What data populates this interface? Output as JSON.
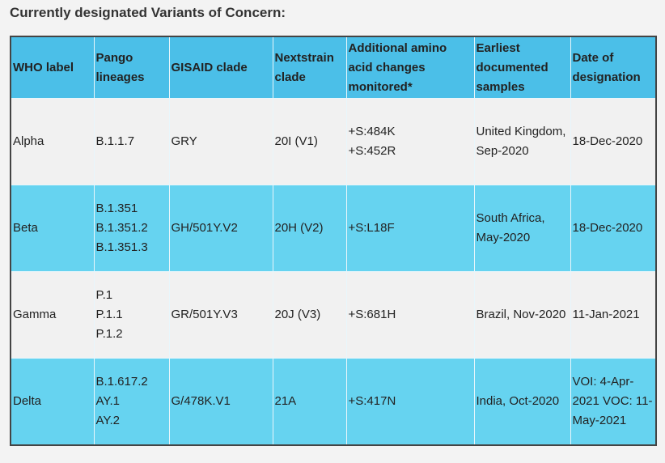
{
  "title": "Currently designated Variants of Concern:",
  "table": {
    "header": [
      "WHO label",
      "Pango lineages",
      "GISAID clade",
      "Nextstrain clade",
      "Additional amino acid changes monitored*",
      "Earliest documented samples",
      "Date of designation"
    ],
    "rows": [
      [
        "Alpha",
        [
          "B.1.1.7"
        ],
        "GRY",
        "20I (V1)",
        [
          "+S:484K",
          "+S:452R"
        ],
        "United Kingdom, Sep-2020",
        "18-Dec-2020"
      ],
      [
        "Beta",
        [
          "B.1.351",
          "B.1.351.2",
          "B.1.351.3"
        ],
        "GH/501Y.V2",
        "20H (V2)",
        [
          "+S:L18F"
        ],
        "South Africa, May-2020",
        "18-Dec-2020"
      ],
      [
        "Gamma",
        [
          "P.1",
          "P.1.1",
          "P.1.2"
        ],
        "GR/501Y.V3",
        "20J (V3)",
        [
          "+S:681H"
        ],
        "Brazil, Nov-2020",
        "11-Jan-2021"
      ],
      [
        "Delta",
        [
          "B.1.617.2",
          "AY.1",
          "AY.2"
        ],
        "G/478K.V1",
        "21A",
        [
          "+S:417N"
        ],
        "India, Oct-2020",
        "VOI: 4-Apr-2021 VOC: 11-May-2021"
      ]
    ]
  }
}
